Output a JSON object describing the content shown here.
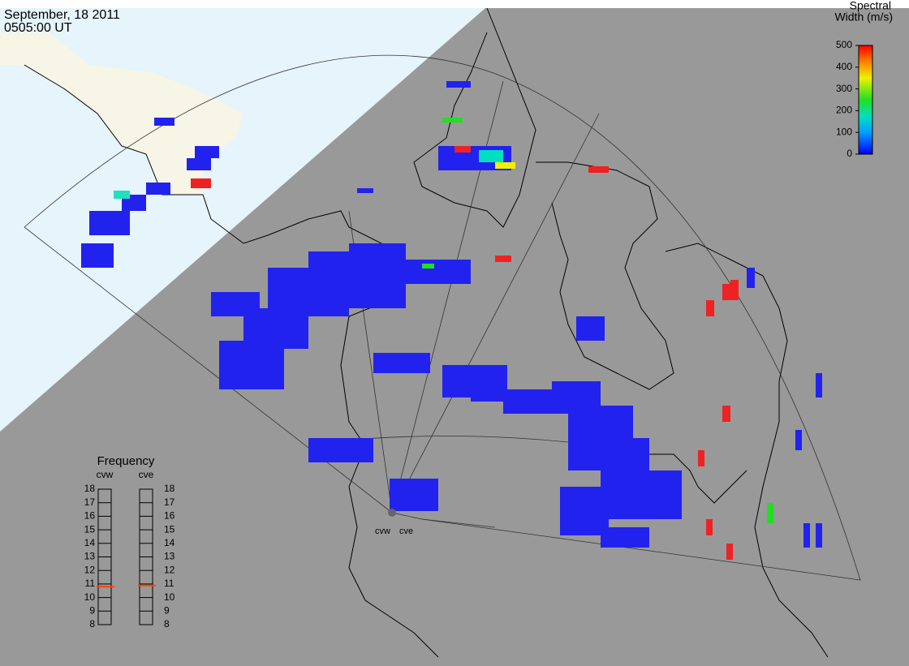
{
  "header": {
    "date": "September, 18 2011",
    "time": "0505:00 UT"
  },
  "colorbar": {
    "title_line1": "Spectral",
    "title_line2": "Width (m/s)",
    "range": [
      0,
      500
    ],
    "ticks": [
      0,
      100,
      200,
      300,
      400,
      500
    ]
  },
  "frequency": {
    "title": "Frequency",
    "range": [
      8,
      18
    ],
    "ticks": [
      8,
      9,
      10,
      11,
      12,
      13,
      14,
      15,
      16,
      17,
      18
    ],
    "radars": [
      {
        "name": "cvw",
        "value": 10.8
      },
      {
        "name": "cve",
        "value": 10.9
      }
    ]
  }
}
